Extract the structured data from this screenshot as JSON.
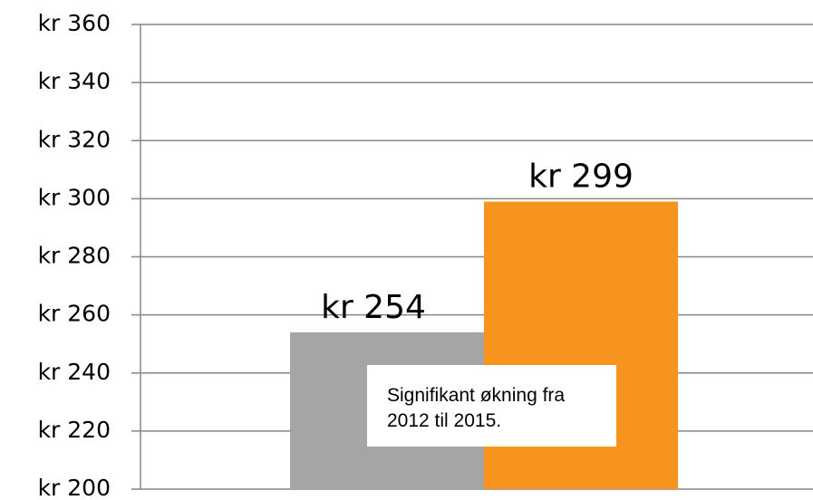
{
  "chart_data": {
    "type": "bar",
    "categories": [
      null,
      null
    ],
    "values": [
      254,
      299
    ],
    "value_labels": [
      "kr 254",
      "kr 299"
    ],
    "colors": [
      "#a5a5a5",
      "#f7941d"
    ],
    "ylim": [
      200,
      360
    ],
    "yticks": [
      {
        "value": 200,
        "label": "kr 200"
      },
      {
        "value": 220,
        "label": "kr 220"
      },
      {
        "value": 240,
        "label": "kr 240"
      },
      {
        "value": 260,
        "label": "kr 260"
      },
      {
        "value": 280,
        "label": "kr 280"
      },
      {
        "value": 300,
        "label": "kr 300"
      },
      {
        "value": 320,
        "label": "kr 320"
      },
      {
        "value": 340,
        "label": "kr 340"
      },
      {
        "value": 360,
        "label": "kr 360"
      }
    ],
    "grid": true,
    "annotation": "Signifikant økning fra 2012 til 2015."
  }
}
